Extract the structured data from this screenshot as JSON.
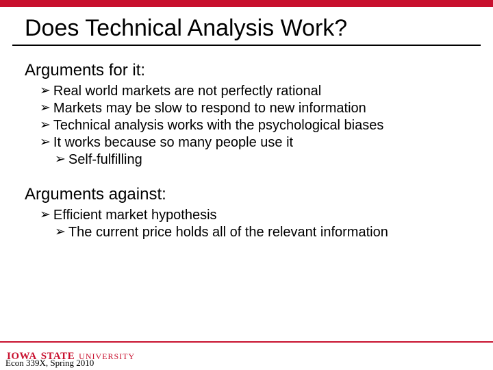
{
  "colors": {
    "accent": "#c8102e",
    "text": "#000000",
    "background": "#ffffff"
  },
  "title": "Does Technical Analysis Work?",
  "sections": [
    {
      "heading": "Arguments for it:",
      "bullets": [
        {
          "level": 1,
          "text": "Real world markets are not perfectly rational"
        },
        {
          "level": 1,
          "text": "Markets may be slow to respond to new information"
        },
        {
          "level": 1,
          "text": "Technical analysis works with the psychological biases"
        },
        {
          "level": 1,
          "text": "It works because so many people use it"
        },
        {
          "level": 2,
          "text": "Self-fulfilling"
        }
      ]
    },
    {
      "heading": "Arguments against:",
      "bullets": [
        {
          "level": 1,
          "text": "Efficient market hypothesis"
        },
        {
          "level": 2,
          "text": "The current price holds all of the relevant information"
        }
      ]
    }
  ],
  "bullet_glyph": "➢",
  "footer": {
    "university_line1a": "IOWA",
    "university_line1b": "STATE",
    "university_line2": "UNIVERSITY",
    "course": "Econ 339X, Spring 2010"
  }
}
